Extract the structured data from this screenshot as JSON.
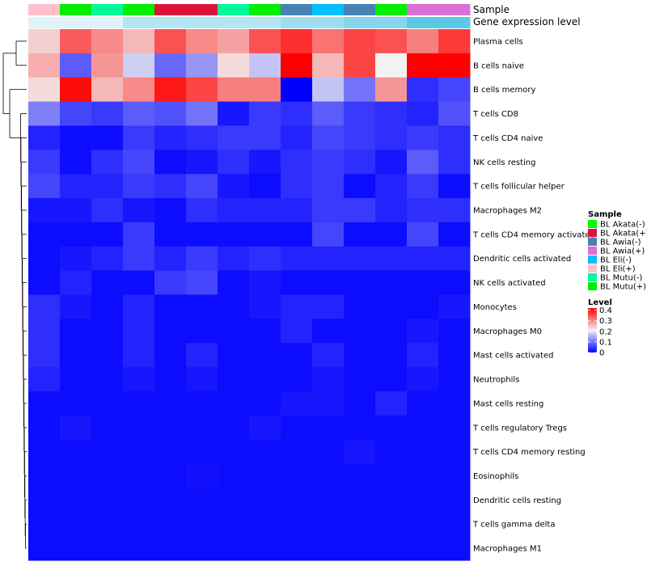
{
  "chart_data": {
    "type": "heatmap",
    "annotation_labels": {
      "sample": "Sample",
      "expression": "Gene expression level"
    },
    "column_samples": [
      "BL Eli(+)",
      "BL Mutu(+)",
      "BL Mutu(-)",
      "BL Mutu(+)",
      "BL Akata(+)",
      "BL Akata(+)",
      "BL Mutu(-)",
      "BL Mutu(+)",
      "BL Awia(-)",
      "BL Eli(-)",
      "BL Awia(-)",
      "BL Mutu(+)",
      "BL Awia(+)",
      "BL Awia(+)"
    ],
    "column_expression_level": [
      0.18,
      0.18,
      0.18,
      0.22,
      0.22,
      0.22,
      0.22,
      0.22,
      0.24,
      0.24,
      0.26,
      0.26,
      0.3,
      0.3
    ],
    "rows": [
      "Plasma cells",
      "B cells naive",
      "B cells memory",
      "T cells CD8",
      "T cells CD4 naive",
      "NK cells resting",
      "T cells follicular helper",
      "Macrophages M2",
      "T cells CD4 memory activated",
      "Dendritic cells activated",
      "NK cells activated",
      "Monocytes",
      "Macrophages M0",
      "Mast cells activated",
      "Neutrophils",
      "Mast cells resting",
      "T cells regulatory  Tregs",
      "T cells CD4 memory resting",
      "Eosinophils",
      "Dendritic cells resting",
      "T cells gamma delta",
      "Macrophages M1"
    ],
    "values": [
      [
        0.24,
        0.34,
        0.3,
        0.26,
        0.35,
        0.3,
        0.28,
        0.35,
        0.38,
        0.32,
        0.36,
        0.35,
        0.31,
        0.37
      ],
      [
        0.27,
        0.08,
        0.29,
        0.18,
        0.09,
        0.13,
        0.23,
        0.17,
        0.42,
        0.26,
        0.36,
        0.21,
        0.42,
        0.42
      ],
      [
        0.23,
        0.41,
        0.26,
        0.3,
        0.4,
        0.36,
        0.31,
        0.31,
        0.0,
        0.17,
        0.1,
        0.29,
        0.04,
        0.06
      ],
      [
        0.11,
        0.06,
        0.05,
        0.08,
        0.07,
        0.1,
        0.02,
        0.05,
        0.04,
        0.08,
        0.05,
        0.04,
        0.03,
        0.07
      ],
      [
        0.03,
        0.01,
        0.01,
        0.05,
        0.03,
        0.04,
        0.05,
        0.05,
        0.03,
        0.06,
        0.05,
        0.04,
        0.05,
        0.04
      ],
      [
        0.05,
        0.01,
        0.04,
        0.06,
        0.01,
        0.02,
        0.04,
        0.02,
        0.04,
        0.05,
        0.04,
        0.02,
        0.08,
        0.04
      ],
      [
        0.06,
        0.03,
        0.03,
        0.05,
        0.04,
        0.06,
        0.02,
        0.01,
        0.04,
        0.05,
        0.01,
        0.03,
        0.05,
        0.01
      ],
      [
        0.02,
        0.02,
        0.04,
        0.02,
        0.01,
        0.04,
        0.03,
        0.03,
        0.03,
        0.05,
        0.05,
        0.03,
        0.04,
        0.04
      ],
      [
        0.01,
        0.01,
        0.01,
        0.05,
        0.01,
        0.01,
        0.01,
        0.01,
        0.01,
        0.06,
        0.01,
        0.01,
        0.06,
        0.01
      ],
      [
        0.01,
        0.02,
        0.03,
        0.05,
        0.03,
        0.05,
        0.03,
        0.04,
        0.03,
        0.03,
        0.03,
        0.03,
        0.03,
        0.03
      ],
      [
        0.01,
        0.03,
        0.01,
        0.01,
        0.05,
        0.06,
        0.01,
        0.02,
        0.01,
        0.01,
        0.01,
        0.01,
        0.01,
        0.01
      ],
      [
        0.04,
        0.02,
        0.01,
        0.03,
        0.01,
        0.01,
        0.01,
        0.02,
        0.03,
        0.03,
        0.01,
        0.01,
        0.01,
        0.02
      ],
      [
        0.04,
        0.01,
        0.01,
        0.03,
        0.01,
        0.01,
        0.01,
        0.01,
        0.03,
        0.01,
        0.01,
        0.01,
        0.02,
        0.01
      ],
      [
        0.04,
        0.01,
        0.01,
        0.03,
        0.01,
        0.03,
        0.01,
        0.01,
        0.01,
        0.03,
        0.01,
        0.01,
        0.03,
        0.01
      ],
      [
        0.03,
        0.01,
        0.01,
        0.02,
        0.01,
        0.02,
        0.01,
        0.01,
        0.01,
        0.02,
        0.01,
        0.01,
        0.02,
        0.01
      ],
      [
        0.01,
        0.01,
        0.01,
        0.01,
        0.01,
        0.01,
        0.01,
        0.01,
        0.02,
        0.02,
        0.01,
        0.03,
        0.01,
        0.01
      ],
      [
        0.01,
        0.02,
        0.01,
        0.01,
        0.01,
        0.01,
        0.01,
        0.02,
        0.01,
        0.01,
        0.01,
        0.01,
        0.01,
        0.01
      ],
      [
        0.01,
        0.01,
        0.01,
        0.01,
        0.01,
        0.01,
        0.01,
        0.01,
        0.01,
        0.01,
        0.02,
        0.01,
        0.01,
        0.01
      ],
      [
        0.01,
        0.01,
        0.01,
        0.01,
        0.01,
        0.015,
        0.01,
        0.01,
        0.01,
        0.01,
        0.01,
        0.01,
        0.01,
        0.01
      ],
      [
        0.01,
        0.01,
        0.01,
        0.01,
        0.01,
        0.01,
        0.01,
        0.01,
        0.01,
        0.01,
        0.01,
        0.01,
        0.01,
        0.01
      ],
      [
        0.01,
        0.01,
        0.01,
        0.01,
        0.01,
        0.01,
        0.01,
        0.01,
        0.01,
        0.01,
        0.01,
        0.01,
        0.01,
        0.01
      ],
      [
        0.01,
        0.01,
        0.01,
        0.01,
        0.01,
        0.01,
        0.01,
        0.01,
        0.01,
        0.01,
        0.01,
        0.01,
        0.01,
        0.01
      ]
    ],
    "color_scale": {
      "low": "#0000ff",
      "mid": "#f2f2f2",
      "high": "#ff0000",
      "range": [
        0,
        0.42
      ],
      "midpoint": 0.21
    },
    "dendrogram": "rows",
    "legends": {
      "sample": {
        "title": "Sample",
        "position": "right",
        "entries": [
          {
            "label": "BL Akata(-)",
            "color": "#00ff00"
          },
          {
            "label": "BL Akata(+)",
            "color": "#dc143c"
          },
          {
            "label": "BL Awia(-)",
            "color": "#4682b4"
          },
          {
            "label": "BL Awia(+)",
            "color": "#da70d6"
          },
          {
            "label": "BL Eli(-)",
            "color": "#00bfff"
          },
          {
            "label": "BL Eli(+)",
            "color": "#ffc0cb"
          },
          {
            "label": "BL Mutu(-)",
            "color": "#00fa9a"
          },
          {
            "label": "BL Mutu(+)",
            "color": "#00ee00"
          }
        ]
      },
      "level": {
        "title": "Level",
        "position": "right",
        "ticks": [
          "0.4",
          "0.3",
          "0.2",
          "0.1",
          "0"
        ],
        "tick_values": [
          0.4,
          0.3,
          0.2,
          0.1,
          0
        ]
      }
    }
  }
}
